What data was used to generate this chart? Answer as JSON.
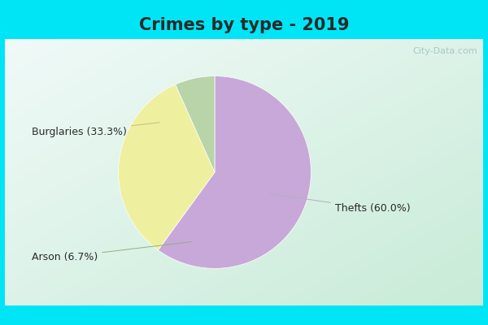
{
  "title": "Crimes by type - 2019",
  "slices": [
    {
      "label": "Thefts (60.0%)",
      "value": 60.0,
      "color": "#c8a8d8"
    },
    {
      "label": "Burglaries (33.3%)",
      "value": 33.3,
      "color": "#eef0a0"
    },
    {
      "label": "Arson (6.7%)",
      "value": 6.7,
      "color": "#b8d4a8"
    }
  ],
  "bg_cyan": "#00e5f5",
  "bg_main_top": "#e8f8f0",
  "bg_main_bottom": "#d0eee0",
  "title_fontsize": 15,
  "label_fontsize": 9,
  "watermark": "City-Data.com",
  "startangle": 90,
  "title_color": "#2a2a2a"
}
